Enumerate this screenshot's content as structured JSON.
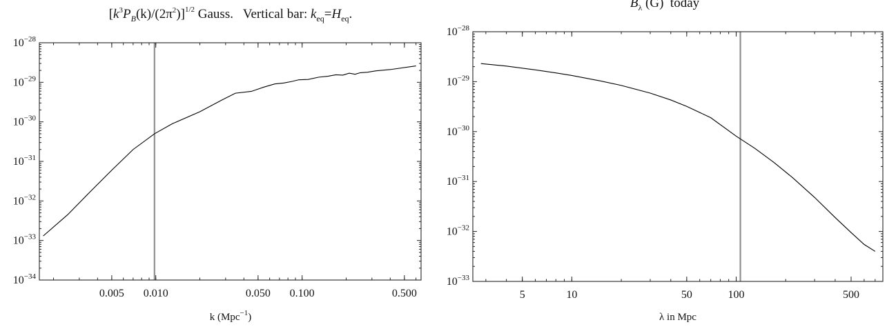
{
  "colors": {
    "curve": "#000000",
    "vertical_bar": "#909090",
    "frame": "#222222",
    "background": "#ffffff"
  },
  "chart_data": [
    {
      "type": "line",
      "title": "[k³P_B(k)/(2π²)]^(1/2) Gauss.   Vertical bar: k_eq=H_eq.",
      "title_parts": {
        "open": "[",
        "k": "k",
        "k_exp": "3",
        "P": "P",
        "P_sub": "B",
        "arg": "(k)/(2π",
        "pi_exp": "2",
        "close": ")]",
        "outer_exp": "1/2",
        "gauss": " Gauss.   Vertical bar: ",
        "keq": "k",
        "keq_sub": "eq",
        "eq": "=",
        "Heq": "H",
        "Heq_sub": "eq",
        "end": "."
      },
      "xlabel": "k (Mpc⁻¹)",
      "xlabel_parts": {
        "main": "k (Mpc",
        "exp": "−1",
        "close": ")"
      },
      "ylabel": "",
      "x_scale": "log",
      "y_scale": "log",
      "xlim": [
        0.0016,
        0.65
      ],
      "ylim": [
        1e-34,
        1e-28
      ],
      "x_ticks": [
        {
          "value": 0.005,
          "label": "0.005"
        },
        {
          "value": 0.01,
          "label": "0.010"
        },
        {
          "value": 0.05,
          "label": "0.050"
        },
        {
          "value": 0.1,
          "label": "0.100"
        },
        {
          "value": 0.5,
          "label": "0.500"
        }
      ],
      "y_ticks": [
        {
          "value": 1e-28,
          "base": "10",
          "exp": "−28"
        },
        {
          "value": 1e-29,
          "base": "10",
          "exp": "−29"
        },
        {
          "value": 1e-30,
          "base": "10",
          "exp": "−30"
        },
        {
          "value": 1e-31,
          "base": "10",
          "exp": "−31"
        },
        {
          "value": 1e-32,
          "base": "10",
          "exp": "−32"
        },
        {
          "value": 1e-33,
          "base": "10",
          "exp": "−33"
        },
        {
          "value": 1e-34,
          "base": "10",
          "exp": "−34"
        }
      ],
      "vertical_line_x": 0.0098,
      "grid": false,
      "legend": "none",
      "series": [
        {
          "x": [
            0.0017,
            0.0025,
            0.0035,
            0.005,
            0.007,
            0.0098,
            0.013,
            0.02,
            0.028,
            0.035,
            0.045,
            0.055,
            0.065,
            0.075,
            0.085,
            0.095,
            0.11,
            0.13,
            0.15,
            0.17,
            0.19,
            0.21,
            0.23,
            0.25,
            0.28,
            0.32,
            0.4,
            0.6
          ],
          "y": [
            1.3e-33,
            4.5e-33,
            1.6e-32,
            6e-32,
            2e-31,
            5e-31,
            9e-31,
            1.8e-30,
            3.5e-30,
            5.3e-30,
            5.9e-30,
            7.6e-30,
            9.1e-30,
            9.6e-30,
            1.05e-29,
            1.16e-29,
            1.18e-29,
            1.35e-29,
            1.42e-29,
            1.55e-29,
            1.52e-29,
            1.7e-29,
            1.6e-29,
            1.75e-29,
            1.8e-29,
            1.95e-29,
            2.1e-29,
            2.6e-29
          ]
        }
      ]
    },
    {
      "type": "line",
      "title": "B_λ (G)  today",
      "title_parts": {
        "B": "B",
        "B_sub": "λ",
        "rest": " (G)  today"
      },
      "xlabel": "λ in Mpc",
      "ylabel": "",
      "x_scale": "log",
      "y_scale": "log",
      "xlim": [
        2.5,
        780
      ],
      "ylim": [
        1e-33,
        1e-28
      ],
      "x_ticks": [
        {
          "value": 5,
          "label": "5"
        },
        {
          "value": 10,
          "label": "10"
        },
        {
          "value": 50,
          "label": "50"
        },
        {
          "value": 100,
          "label": "100"
        },
        {
          "value": 500,
          "label": "500"
        }
      ],
      "y_ticks": [
        {
          "value": 1e-28,
          "base": "10",
          "exp": "−28"
        },
        {
          "value": 1e-29,
          "base": "10",
          "exp": "−29"
        },
        {
          "value": 1e-30,
          "base": "10",
          "exp": "−30"
        },
        {
          "value": 1e-31,
          "base": "10",
          "exp": "−31"
        },
        {
          "value": 1e-32,
          "base": "10",
          "exp": "−32"
        },
        {
          "value": 1e-33,
          "base": "10",
          "exp": "−33"
        }
      ],
      "vertical_line_x": 106,
      "grid": false,
      "legend": "none",
      "series": [
        {
          "x": [
            2.8,
            4,
            6,
            8,
            10,
            15,
            20,
            30,
            40,
            50,
            70,
            100,
            130,
            170,
            220,
            300,
            400,
            500,
            600,
            700
          ],
          "y": [
            2.3e-29,
            2.05e-29,
            1.72e-29,
            1.5e-29,
            1.33e-29,
            1.03e-29,
            8.4e-30,
            5.9e-30,
            4.3e-30,
            3.2e-30,
            1.9e-30,
            8.1e-31,
            4.6e-31,
            2.4e-31,
            1.2e-31,
            4.8e-32,
            1.9e-32,
            9.5e-33,
            5.5e-33,
            4e-33
          ]
        }
      ]
    }
  ]
}
